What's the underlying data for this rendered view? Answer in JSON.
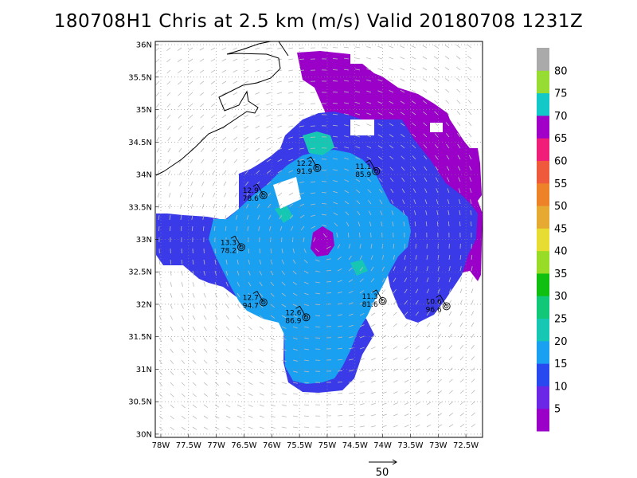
{
  "title": "180708H1 Chris at 2.5 km (m/s) Valid 20180708  1231Z",
  "axes": {
    "lat_labels": [
      "30N",
      "30.5N",
      "31N",
      "31.5N",
      "32N",
      "32.5N",
      "33N",
      "33.5N",
      "34N",
      "34.5N",
      "35N",
      "35.5N",
      "36N"
    ],
    "lon_labels": [
      "78W",
      "77.5W",
      "77W",
      "76.5W",
      "76W",
      "75.5W",
      "75W",
      "74.5W",
      "74W",
      "73.5W",
      "73W",
      "72.5W"
    ],
    "lat_range": [
      29.95,
      36.05
    ],
    "lon_range": [
      -78.1,
      -72.2
    ]
  },
  "colorbar": {
    "labels": [
      "5",
      "10",
      "15",
      "20",
      "25",
      "30",
      "35",
      "40",
      "45",
      "50",
      "55",
      "60",
      "65",
      "70",
      "75",
      "80"
    ],
    "colors": [
      "#9a00c8",
      "#6a28e6",
      "#2848f0",
      "#1aa0f0",
      "#16c8b4",
      "#10c878",
      "#10c010",
      "#98dc28",
      "#e6dc32",
      "#e6aa32",
      "#ee8228",
      "#f05a3c",
      "#f01e78",
      "#a000c8",
      "#12c8c8",
      "#96dc32",
      "#aaaaaa"
    ]
  },
  "stations": [
    {
      "lon": -76.55,
      "lat": 32.88,
      "v1": "13.3",
      "v2": "78.2"
    },
    {
      "lon": -76.15,
      "lat": 33.68,
      "v1": "12.9",
      "v2": "78.6"
    },
    {
      "lon": -75.18,
      "lat": 34.1,
      "v1": "12.2",
      "v2": "91.9"
    },
    {
      "lon": -74.12,
      "lat": 34.05,
      "v1": "11.1",
      "v2": "85.9"
    },
    {
      "lon": -76.15,
      "lat": 32.03,
      "v1": "12.7",
      "v2": "94.7"
    },
    {
      "lon": -75.38,
      "lat": 31.8,
      "v1": "12.6",
      "v2": "86.9"
    },
    {
      "lon": -74.0,
      "lat": 32.05,
      "v1": "11.3",
      "v2": "81.6"
    },
    {
      "lon": -72.85,
      "lat": 31.97,
      "v1": "10.6",
      "v2": "96.6"
    }
  ],
  "reference_vector": {
    "label": "50"
  }
}
